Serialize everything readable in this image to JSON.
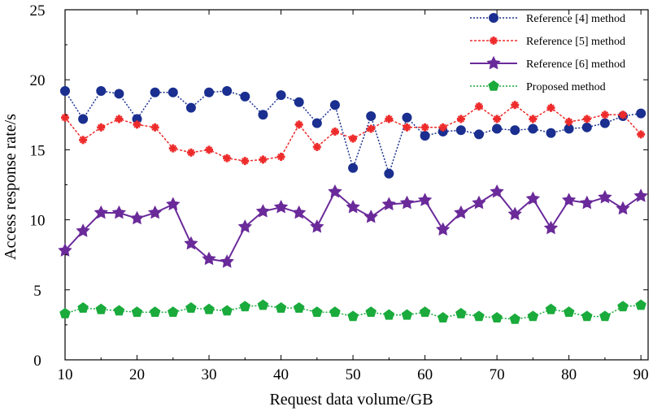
{
  "chart_data": {
    "type": "line",
    "title": "",
    "xlabel": "Request data volume/GB",
    "ylabel": "Access response rate/s",
    "xlim": [
      10,
      91
    ],
    "ylim": [
      0,
      25
    ],
    "xticks": [
      10,
      20,
      30,
      40,
      50,
      60,
      70,
      80,
      90
    ],
    "yticks": [
      0,
      5,
      10,
      15,
      20,
      25
    ],
    "x": [
      10,
      12.5,
      15,
      17.5,
      20,
      22.5,
      25,
      27.5,
      30,
      32.5,
      35,
      37.5,
      40,
      42.5,
      45,
      47.5,
      50,
      52.5,
      55,
      57.5,
      60,
      62.5,
      65,
      67.5,
      70,
      72.5,
      75,
      77.5,
      80,
      82.5,
      85,
      87.5,
      90
    ],
    "legend_position": "top-right",
    "series": [
      {
        "name": "Reference [4] method",
        "color": "#1a2f8f",
        "marker": "circle",
        "values": [
          19.2,
          17.2,
          19.2,
          19.0,
          17.2,
          19.1,
          19.1,
          18.0,
          19.1,
          19.2,
          18.8,
          17.5,
          18.9,
          18.4,
          16.9,
          18.2,
          13.7,
          17.4,
          13.3,
          17.3,
          16.0,
          16.3,
          16.4,
          16.1,
          16.5,
          16.4,
          16.5,
          16.2,
          16.5,
          16.6,
          16.9,
          17.4,
          17.6
        ]
      },
      {
        "name": "Reference [5] method",
        "color": "#ee2b2b",
        "marker": "plus",
        "values": [
          17.3,
          15.7,
          16.6,
          17.2,
          16.8,
          16.6,
          15.1,
          14.8,
          15.0,
          14.4,
          14.2,
          14.3,
          14.5,
          16.8,
          15.2,
          16.3,
          15.8,
          16.5,
          17.2,
          16.6,
          16.6,
          16.6,
          17.2,
          18.1,
          17.2,
          18.2,
          17.2,
          18.0,
          17.0,
          17.2,
          17.5,
          17.5,
          16.1
        ]
      },
      {
        "name": "Reference [6] method",
        "color": "#6a2a9a",
        "marker": "star",
        "values": [
          7.8,
          9.2,
          10.5,
          10.5,
          10.1,
          10.5,
          11.1,
          8.3,
          7.2,
          7.0,
          9.5,
          10.6,
          10.9,
          10.5,
          9.5,
          12.0,
          10.9,
          10.2,
          11.1,
          11.2,
          11.4,
          9.3,
          10.5,
          11.2,
          12.0,
          10.4,
          11.5,
          9.4,
          11.4,
          11.2,
          11.6,
          10.8,
          11.7
        ]
      },
      {
        "name": "Proposed method",
        "color": "#1aab3c",
        "marker": "pentagon",
        "values": [
          3.3,
          3.7,
          3.6,
          3.5,
          3.4,
          3.4,
          3.4,
          3.7,
          3.6,
          3.5,
          3.8,
          3.9,
          3.7,
          3.7,
          3.4,
          3.4,
          3.1,
          3.4,
          3.2,
          3.2,
          3.4,
          3.0,
          3.3,
          3.1,
          3.0,
          2.9,
          3.1,
          3.6,
          3.4,
          3.1,
          3.1,
          3.8,
          3.9
        ]
      }
    ]
  }
}
